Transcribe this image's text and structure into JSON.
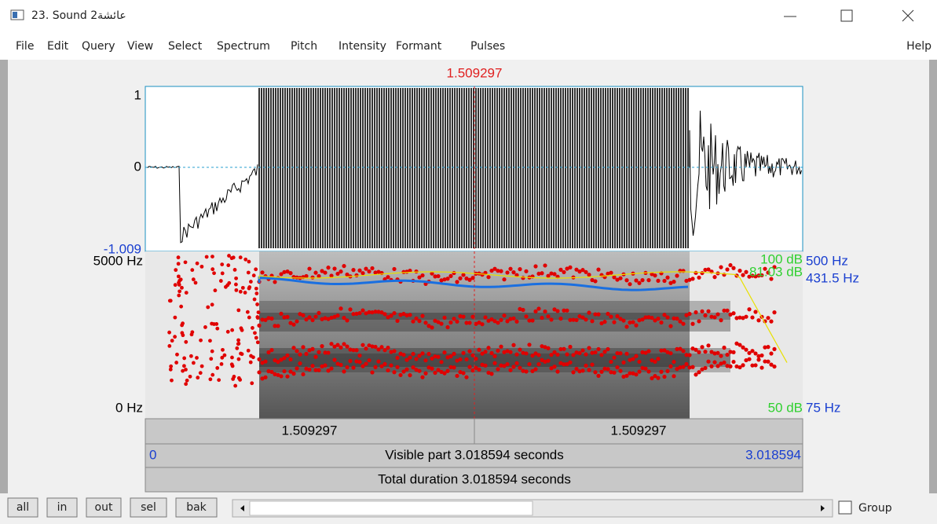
{
  "window": {
    "title": "23. Sound 2عائشة"
  },
  "menu": {
    "items": [
      "File",
      "Edit",
      "Query",
      "View",
      "Select",
      "Spectrum",
      "Pitch",
      "Intensity",
      "Formant",
      "Pulses"
    ],
    "help": "Help"
  },
  "cursor": {
    "time": "1.509297"
  },
  "waveform": {
    "top_label": "1",
    "zero_label": "0",
    "bottom_label": "-1.009"
  },
  "spectrogram": {
    "top_label": "5000 Hz",
    "bottom_label": "0 Hz",
    "right_labels": {
      "pitch_top": "500 Hz",
      "pitch_value": "431.5 Hz",
      "pitch_bottom": "75 Hz",
      "intensity_top": "100 dB",
      "intensity_value": "81.03 dB",
      "intensity_bottom": "50 dB"
    }
  },
  "time_bars": {
    "left_part": "1.509297",
    "right_part": "1.509297",
    "visible_start": "0",
    "visible_label": "Visible part 3.018594 seconds",
    "visible_end": "3.018594",
    "total_label": "Total duration 3.018594 seconds"
  },
  "buttons": [
    "all",
    "in",
    "out",
    "sel",
    "bak"
  ],
  "group_checkbox": "Group"
}
